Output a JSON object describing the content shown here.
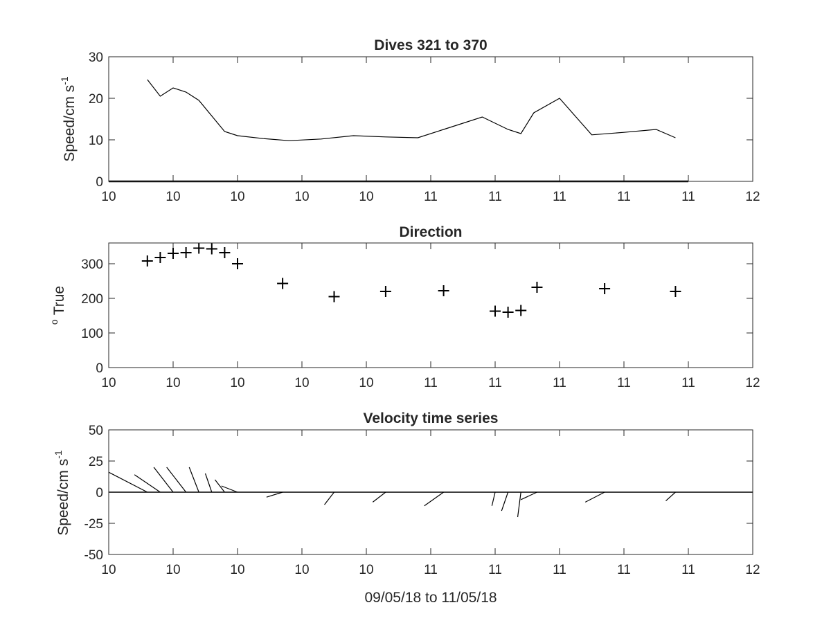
{
  "chart_data": [
    {
      "type": "line",
      "title": "Dives 321 to 370",
      "ylabel_main": "Speed/cm s",
      "ylabel_sup": "-1",
      "xlim": [
        0,
        10
      ],
      "ylim": [
        0,
        30
      ],
      "xticks": [
        0,
        1,
        2,
        3,
        4,
        5,
        6,
        7,
        8,
        9,
        10
      ],
      "xticklabels": [
        "10",
        "10",
        "10",
        "10",
        "10",
        "11",
        "11",
        "11",
        "11",
        "11",
        "12"
      ],
      "yticks": [
        0,
        10,
        20,
        30
      ],
      "yticklabels": [
        "0",
        "10",
        "20",
        "30"
      ],
      "baseline": {
        "y": 0,
        "x_start": 0,
        "x_end": 9.0
      },
      "series": [
        {
          "x": [
            0.6,
            0.8,
            1.0,
            1.2,
            1.4,
            1.8,
            2.0,
            2.4,
            2.8,
            3.3,
            3.8,
            4.3,
            4.8,
            5.2,
            5.8,
            6.0,
            6.2,
            6.4,
            6.6,
            7.0,
            7.5,
            8.0,
            8.5,
            8.8
          ],
          "y": [
            24.5,
            20.5,
            22.5,
            21.5,
            19.5,
            12.0,
            11.0,
            10.3,
            9.8,
            10.2,
            11.0,
            10.7,
            10.5,
            12.5,
            15.5,
            14.0,
            12.5,
            11.5,
            16.5,
            20.0,
            11.2,
            11.8,
            12.5,
            10.5
          ]
        }
      ]
    },
    {
      "type": "scatter",
      "title": "Direction",
      "ylabel_main": "True",
      "ylabel_sup": "o",
      "xlim": [
        0,
        10
      ],
      "ylim": [
        0,
        360
      ],
      "xticks": [
        0,
        1,
        2,
        3,
        4,
        5,
        6,
        7,
        8,
        9,
        10
      ],
      "xticklabels": [
        "10",
        "10",
        "10",
        "10",
        "10",
        "11",
        "11",
        "11",
        "11",
        "11",
        "12"
      ],
      "yticks": [
        0,
        100,
        200,
        300
      ],
      "yticklabels": [
        "0",
        "100",
        "200",
        "300"
      ],
      "marker": "+",
      "series": [
        {
          "x": [
            0.6,
            0.8,
            1.0,
            1.2,
            1.4,
            1.6,
            1.8,
            2.0,
            2.7,
            3.5,
            4.3,
            5.2,
            6.0,
            6.2,
            6.4,
            6.65,
            7.7,
            8.8
          ],
          "y": [
            308,
            318,
            330,
            332,
            345,
            343,
            332,
            300,
            243,
            205,
            220,
            222,
            163,
            160,
            165,
            232,
            228,
            220
          ]
        }
      ]
    },
    {
      "type": "quiver",
      "title": "Velocity time series",
      "ylabel_main": "Speed/cm s",
      "ylabel_sup": "-1",
      "xlabel": "09/05/18 to 11/05/18",
      "xlim": [
        0,
        10
      ],
      "ylim": [
        -50,
        50
      ],
      "xticks": [
        0,
        1,
        2,
        3,
        4,
        5,
        6,
        7,
        8,
        9,
        10
      ],
      "xticklabels": [
        "10",
        "10",
        "10",
        "10",
        "10",
        "11",
        "11",
        "11",
        "11",
        "11",
        "12"
      ],
      "yticks": [
        -50,
        -25,
        0,
        25,
        50
      ],
      "yticklabels": [
        "-50",
        "-25",
        "0",
        "25",
        "50"
      ],
      "baseline": {
        "y": 0,
        "x_start": 0,
        "x_end": 10
      },
      "vectors": [
        {
          "x": 0.6,
          "u": -0.6,
          "v": 16
        },
        {
          "x": 0.8,
          "u": -0.4,
          "v": 14
        },
        {
          "x": 1.0,
          "u": -0.3,
          "v": 20
        },
        {
          "x": 1.2,
          "u": -0.3,
          "v": 20
        },
        {
          "x": 1.4,
          "u": -0.15,
          "v": 20
        },
        {
          "x": 1.6,
          "u": -0.1,
          "v": 15
        },
        {
          "x": 1.8,
          "u": -0.15,
          "v": 10
        },
        {
          "x": 2.0,
          "u": -0.25,
          "v": 5
        },
        {
          "x": 2.7,
          "u": -0.25,
          "v": -4
        },
        {
          "x": 3.5,
          "u": -0.15,
          "v": -10
        },
        {
          "x": 4.3,
          "u": -0.2,
          "v": -8
        },
        {
          "x": 5.2,
          "u": -0.3,
          "v": -11
        },
        {
          "x": 6.0,
          "u": -0.05,
          "v": -11
        },
        {
          "x": 6.2,
          "u": -0.1,
          "v": -15
        },
        {
          "x": 6.4,
          "u": -0.05,
          "v": -20
        },
        {
          "x": 6.65,
          "u": -0.25,
          "v": -6
        },
        {
          "x": 7.7,
          "u": -0.3,
          "v": -8
        },
        {
          "x": 8.8,
          "u": -0.15,
          "v": -7
        }
      ]
    }
  ]
}
